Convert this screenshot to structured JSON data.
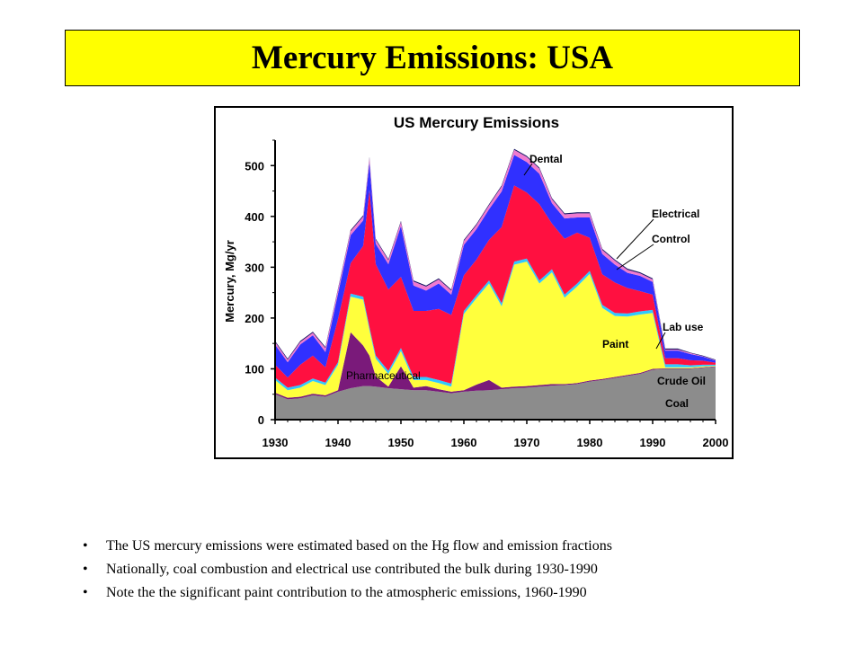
{
  "slide": {
    "title": "Mercury Emissions: USA",
    "bullets": [
      "The US mercury emissions were estimated based on the Hg flow and emission fractions",
      "Nationally, coal combustion and electrical use contributed the bulk during 1930-1990",
      "Note the the significant paint contribution to the atmospheric emissions, 1960-1990"
    ]
  },
  "chart_data": {
    "type": "area",
    "stacked": true,
    "title": "US Mercury Emissions",
    "ylabel": "Mercury, Mg/yr",
    "xlabel": "",
    "xlim": [
      1930,
      2000
    ],
    "ylim": [
      0,
      550
    ],
    "x_ticks": [
      "1930",
      "1940",
      "1950",
      "1960",
      "1970",
      "1980",
      "1990",
      "2000"
    ],
    "y_ticks": [
      "0",
      "100",
      "200",
      "300",
      "400",
      "500"
    ],
    "grid": false,
    "years": [
      1930,
      1932,
      1934,
      1936,
      1938,
      1940,
      1942,
      1944,
      1945,
      1946,
      1948,
      1950,
      1952,
      1954,
      1956,
      1958,
      1960,
      1962,
      1964,
      1966,
      1968,
      1970,
      1972,
      1974,
      1976,
      1978,
      1980,
      1982,
      1984,
      1986,
      1988,
      1990,
      1992,
      1994,
      1996,
      1998,
      2000
    ],
    "series": [
      {
        "name": "Coal",
        "color": "#8c8c8c",
        "values": [
          50,
          40,
          42,
          48,
          45,
          55,
          62,
          66,
          66,
          65,
          62,
          60,
          58,
          58,
          55,
          52,
          55,
          57,
          58,
          60,
          62,
          63,
          65,
          67,
          68,
          70,
          75,
          78,
          82,
          86,
          90,
          98,
          100,
          100,
          100,
          102,
          104
        ]
      },
      {
        "name": "Pharmaceutical",
        "color": "#7a1a7a",
        "values": [
          3,
          3,
          3,
          3,
          3,
          3,
          110,
          80,
          60,
          20,
          3,
          45,
          5,
          8,
          5,
          3,
          3,
          12,
          20,
          3,
          3,
          3,
          3,
          3,
          2,
          2,
          2,
          2,
          2,
          2,
          2,
          2,
          1,
          1,
          1,
          1,
          1
        ]
      },
      {
        "name": "Paint",
        "color": "#ffff3c",
        "values": [
          25,
          15,
          18,
          25,
          20,
          50,
          70,
          90,
          50,
          35,
          25,
          30,
          15,
          12,
          12,
          10,
          150,
          170,
          190,
          160,
          240,
          245,
          200,
          220,
          170,
          190,
          210,
          140,
          120,
          115,
          115,
          110,
          2,
          2,
          2,
          2,
          1
        ]
      },
      {
        "name": "Crude Oil",
        "color": "#30c8ff",
        "values": [
          5,
          5,
          5,
          5,
          5,
          5,
          6,
          6,
          6,
          6,
          6,
          6,
          6,
          6,
          6,
          6,
          6,
          6,
          6,
          6,
          6,
          6,
          6,
          6,
          6,
          6,
          6,
          6,
          6,
          6,
          6,
          6,
          6,
          6,
          4,
          3,
          2
        ]
      },
      {
        "name": "Control",
        "color": "#ff1040",
        "values": [
          25,
          20,
          40,
          45,
          30,
          85,
          60,
          100,
          270,
          180,
          160,
          140,
          130,
          130,
          140,
          135,
          70,
          70,
          80,
          150,
          150,
          130,
          150,
          90,
          110,
          100,
          65,
          60,
          60,
          50,
          40,
          30,
          12,
          12,
          10,
          8,
          4
        ]
      },
      {
        "name": "Electrical",
        "color": "#3030ff",
        "values": [
          40,
          30,
          40,
          40,
          30,
          50,
          55,
          50,
          55,
          40,
          50,
          100,
          50,
          40,
          50,
          40,
          60,
          60,
          60,
          70,
          60,
          60,
          60,
          40,
          40,
          30,
          40,
          40,
          35,
          30,
          30,
          25,
          15,
          15,
          12,
          8,
          4
        ]
      },
      {
        "name": "Dental",
        "color": "#f07ad0",
        "values": [
          5,
          5,
          5,
          5,
          8,
          8,
          8,
          8,
          8,
          8,
          8,
          8,
          8,
          8,
          8,
          8,
          8,
          8,
          8,
          10,
          10,
          10,
          10,
          8,
          8,
          8,
          8,
          8,
          8,
          6,
          5,
          5,
          2,
          2,
          2,
          1,
          1
        ]
      },
      {
        "name": "Lab use",
        "color": "#101060",
        "values": [
          2,
          2,
          2,
          2,
          2,
          2,
          2,
          2,
          2,
          2,
          2,
          2,
          2,
          2,
          2,
          2,
          2,
          2,
          2,
          2,
          2,
          2,
          2,
          2,
          2,
          2,
          2,
          2,
          2,
          2,
          2,
          2,
          2,
          2,
          1,
          1,
          1
        ]
      }
    ],
    "labels": {
      "dental": "Dental",
      "electrical": "Electrical",
      "control": "Control",
      "lab_use": "Lab use",
      "paint": "Paint",
      "pharmaceutical": "Pharmaceutical",
      "crude_oil": "Crude Oil",
      "coal": "Coal"
    }
  }
}
